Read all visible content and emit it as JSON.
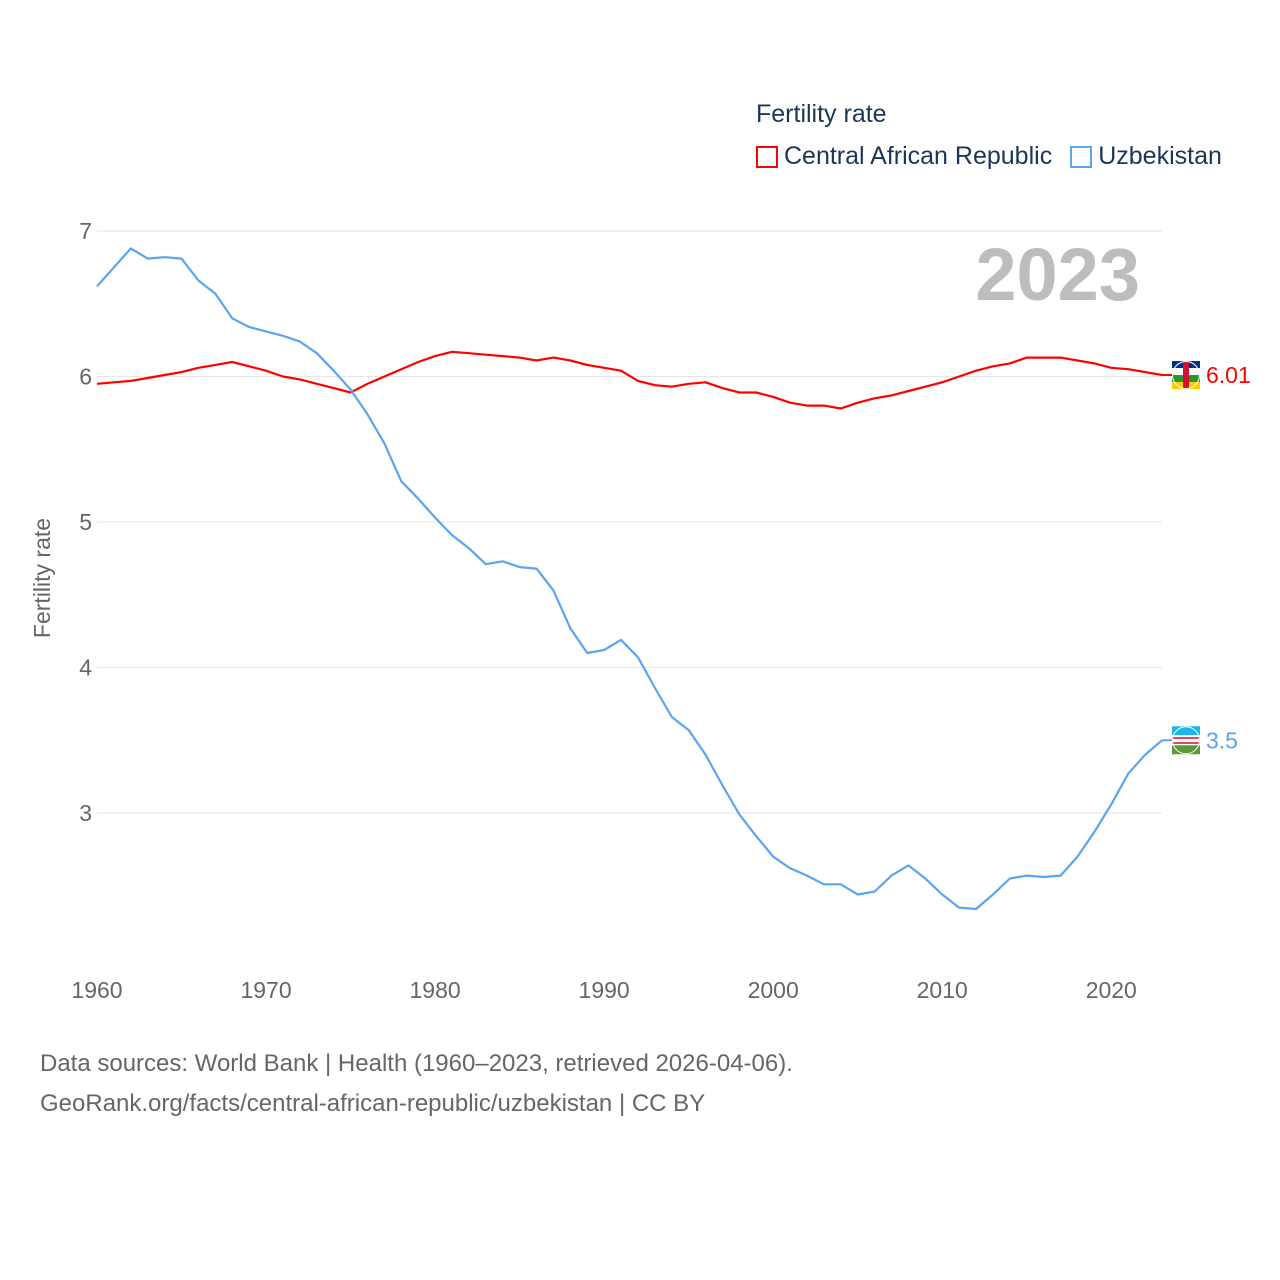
{
  "chart_data": {
    "type": "line",
    "title": "Fertility rate",
    "xlabel": "",
    "ylabel": "Fertility rate",
    "year_label": "2023",
    "xlim": [
      1960,
      2023
    ],
    "ylim": [
      2.1,
      7.0
    ],
    "x_ticks": [
      1960,
      1970,
      1980,
      1990,
      2000,
      2010,
      2020
    ],
    "y_ticks": [
      3,
      4,
      5,
      6,
      7
    ],
    "grid": true,
    "legend_position": "top-right",
    "x": [
      1960,
      1961,
      1962,
      1963,
      1964,
      1965,
      1966,
      1967,
      1968,
      1969,
      1970,
      1971,
      1972,
      1973,
      1974,
      1975,
      1976,
      1977,
      1978,
      1979,
      1980,
      1981,
      1982,
      1983,
      1984,
      1985,
      1986,
      1987,
      1988,
      1989,
      1990,
      1991,
      1992,
      1993,
      1994,
      1995,
      1996,
      1997,
      1998,
      1999,
      2000,
      2001,
      2002,
      2003,
      2004,
      2005,
      2006,
      2007,
      2008,
      2009,
      2010,
      2011,
      2012,
      2013,
      2014,
      2015,
      2016,
      2017,
      2018,
      2019,
      2020,
      2021,
      2022,
      2023
    ],
    "series": [
      {
        "name": "Central African Republic",
        "color": "#ff0000",
        "end_label": "6.01",
        "values": [
          5.95,
          5.96,
          5.97,
          5.99,
          6.01,
          6.03,
          6.06,
          6.08,
          6.1,
          6.07,
          6.04,
          6.0,
          5.98,
          5.95,
          5.92,
          5.89,
          5.95,
          6.0,
          6.05,
          6.1,
          6.14,
          6.17,
          6.16,
          6.15,
          6.14,
          6.13,
          6.11,
          6.13,
          6.11,
          6.08,
          6.06,
          6.04,
          5.97,
          5.94,
          5.93,
          5.95,
          5.96,
          5.92,
          5.89,
          5.89,
          5.86,
          5.82,
          5.8,
          5.8,
          5.78,
          5.82,
          5.85,
          5.87,
          5.9,
          5.93,
          5.96,
          6.0,
          6.04,
          6.07,
          6.09,
          6.13,
          6.13,
          6.13,
          6.11,
          6.09,
          6.06,
          6.05,
          6.03,
          6.01
        ]
      },
      {
        "name": "Uzbekistan",
        "color": "#5ba4ee",
        "end_label": "3.5",
        "values": [
          6.62,
          6.75,
          6.88,
          6.81,
          6.82,
          6.81,
          6.66,
          6.57,
          6.4,
          6.34,
          6.31,
          6.28,
          6.24,
          6.16,
          6.04,
          5.91,
          5.74,
          5.54,
          5.28,
          5.16,
          5.03,
          4.91,
          4.82,
          4.71,
          4.73,
          4.69,
          4.68,
          4.53,
          4.27,
          4.1,
          4.12,
          4.19,
          4.07,
          3.86,
          3.66,
          3.57,
          3.4,
          3.19,
          2.99,
          2.84,
          2.7,
          2.62,
          2.57,
          2.51,
          2.51,
          2.44,
          2.46,
          2.57,
          2.64,
          2.55,
          2.44,
          2.35,
          2.34,
          2.44,
          2.55,
          2.57,
          2.56,
          2.57,
          2.7,
          2.87,
          3.06,
          3.27,
          3.4,
          3.5
        ]
      }
    ]
  },
  "footer": {
    "line1": "Data sources: World Bank | Health (1960–2023, retrieved 2026-04-06).",
    "line2": "GeoRank.org/facts/central-african-republic/uzbekistan | CC BY"
  }
}
